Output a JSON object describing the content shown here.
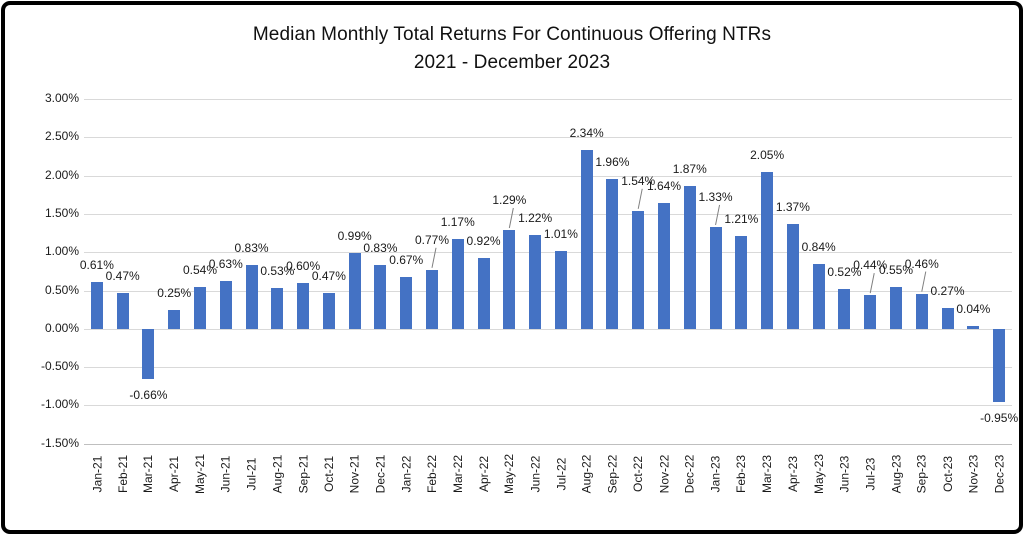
{
  "window": {
    "background_color": "#ffffff",
    "border_color": "#000000"
  },
  "chart_data": {
    "type": "bar",
    "title": "Median Monthly Total Returns For Continuous Offering NTRs 2021 - December 2023",
    "title_line1": "Median Monthly Total Returns For Continuous Offering NTRs",
    "title_line2": "2021 - December 2023",
    "xlabel": "",
    "ylabel": "",
    "legend": "none",
    "grid": true,
    "ylim": [
      -1.5,
      3.0
    ],
    "y_ticks": [
      {
        "label": "3.00%",
        "value": 3.0
      },
      {
        "label": "2.50%",
        "value": 2.5
      },
      {
        "label": "2.00%",
        "value": 2.0
      },
      {
        "label": "1.50%",
        "value": 1.5
      },
      {
        "label": "1.00%",
        "value": 1.0
      },
      {
        "label": "0.50%",
        "value": 0.5
      },
      {
        "label": "0.00%",
        "value": 0.0
      },
      {
        "label": "-0.50%",
        "value": -0.5
      },
      {
        "label": "-1.00%",
        "value": -1.0
      },
      {
        "label": "-1.50%",
        "value": -1.5
      }
    ],
    "categories": [
      "Jan-21",
      "Feb-21",
      "Mar-21",
      "Apr-21",
      "May-21",
      "Jun-21",
      "Jul-21",
      "Aug-21",
      "Sep-21",
      "Oct-21",
      "Nov-21",
      "Dec-21",
      "Jan-22",
      "Feb-22",
      "Mar-22",
      "Apr-22",
      "May-22",
      "Jun-22",
      "Jul-22",
      "Aug-22",
      "Sep-22",
      "Oct-22",
      "Nov-22",
      "Dec-22",
      "Jan-23",
      "Feb-23",
      "Mar-23",
      "Apr-23",
      "May-23",
      "Jun-23",
      "Jul-23",
      "Aug-23",
      "Sep-23",
      "Oct-23",
      "Nov-23",
      "Dec-23"
    ],
    "values": [
      0.61,
      0.47,
      -0.66,
      0.25,
      0.54,
      0.63,
      0.83,
      0.53,
      0.6,
      0.47,
      0.99,
      0.83,
      0.67,
      0.77,
      1.17,
      0.92,
      1.29,
      1.22,
      1.01,
      2.34,
      1.96,
      1.54,
      1.64,
      1.87,
      1.33,
      1.21,
      2.05,
      1.37,
      0.84,
      0.52,
      0.44,
      0.55,
      0.46,
      0.27,
      0.04,
      -0.95
    ],
    "labels": [
      "0.61%",
      "0.47%",
      "-0.66%",
      "0.25%",
      "0.54%",
      "0.63%",
      "0.83%",
      "0.53%",
      "0.60%",
      "0.47%",
      "0.99%",
      "0.83%",
      "0.67%",
      "0.77%",
      "1.17%",
      "0.92%",
      "1.29%",
      "1.22%",
      "1.01%",
      "2.34%",
      "1.96%",
      "1.54%",
      "1.64%",
      "1.87%",
      "1.33%",
      "1.21%",
      "2.05%",
      "1.37%",
      "0.84%",
      "0.52%",
      "0.44%",
      "0.55%",
      "0.46%",
      "0.27%",
      "0.04%",
      "-0.95%"
    ],
    "callout_labels": [
      "Feb-22",
      "May-22",
      "Oct-22",
      "Jan-23",
      "Jul-23",
      "Sep-23"
    ],
    "bar_color": "#4472C4",
    "gridline_color": "#d9d9d9",
    "axis_line_color": "#bfbfbf",
    "label_color": "#1a1a1a",
    "leader_line_color": "#7f7f7f"
  }
}
